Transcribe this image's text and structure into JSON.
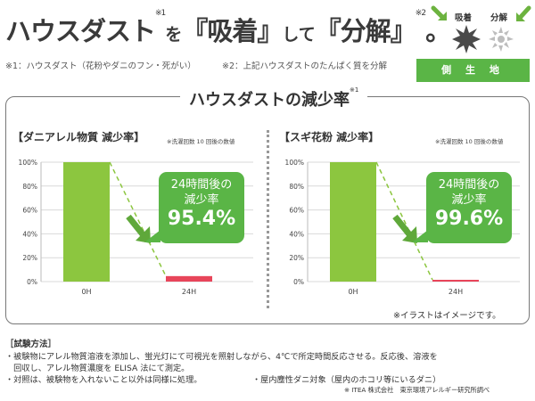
{
  "header": {
    "title_part1": "ハウスダスト",
    "title_sup1": "※1",
    "title_part2": "を",
    "title_part3": "『吸着』",
    "title_part4": "して",
    "title_part5": "『分解』",
    "title_sup2": "※2",
    "title_part6": "。",
    "note1": "※1：ハウスダスト（花粉やダニのフン・死がい）",
    "note2": "※2：上記ハウスダストのたんぱく質を分解"
  },
  "icon_panel": {
    "adsorb_label": "吸着",
    "decompose_label": "分解",
    "badge_label": "側 生 地",
    "colors": {
      "green": "#5ab546",
      "arrow_green": "#6cb33f",
      "dust_dark": "#4a4a4a",
      "dust_light": "#bdbdbd"
    }
  },
  "section": {
    "title": "ハウスダストの減少率",
    "sup": "※1"
  },
  "charts": [
    {
      "title": "【ダニアレル物質 減少率】",
      "note": "※洗濯回数 10 回後の数値",
      "callout_label": "24時間後の\n減少率",
      "callout_value": "95.4%"
    },
    {
      "title": "【スギ花粉 減少率】",
      "note": "※洗濯回数 10 回後の数値",
      "callout_label": "24時間後の\n減少率",
      "callout_value": "99.6%"
    }
  ],
  "chart_data": [
    {
      "type": "bar",
      "title": "【ダニアレル物質 減少率】",
      "categories": [
        "0H",
        "24H"
      ],
      "values": [
        100,
        4.6
      ],
      "yticks": [
        "0%",
        "20%",
        "40%",
        "60%",
        "80%",
        "100%"
      ],
      "ylim": [
        0,
        100
      ],
      "colors": [
        "#8cc63f",
        "#e8455a"
      ],
      "grid": true
    },
    {
      "type": "bar",
      "title": "【スギ花粉 減少率】",
      "categories": [
        "0H",
        "24H"
      ],
      "values": [
        100,
        0.4
      ],
      "yticks": [
        "0%",
        "20%",
        "40%",
        "60%",
        "80%",
        "100%"
      ],
      "ylim": [
        0,
        100
      ],
      "colors": [
        "#8cc63f",
        "#e8455a"
      ],
      "grid": true
    }
  ],
  "disclaimer": "※イラストはイメージです。",
  "method": {
    "title": "［試験方法］",
    "line1": "・被験物にアレル物質溶液を添加し、蛍光灯にて可視光を照射しながら、4℃で所定時間反応させる。反応後、溶液を",
    "line2": "　回収し、アレル物質濃度を ELISA 法にて測定。",
    "line3": "・対照は、被験物を入れないこと以外は同様に処理。",
    "line3b": "・屋内塵性ダニ対象（屋内のホコリ等にいるダニ）",
    "source": "※ ITEA 株式会社　東京環境アレルギー研究所調べ"
  }
}
